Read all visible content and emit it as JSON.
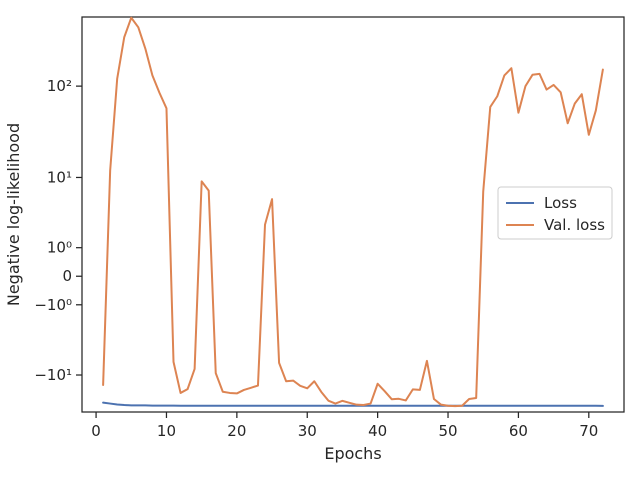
{
  "chart_data": {
    "type": "line",
    "xlabel": "Epochs",
    "ylabel": "Negative log-likelihood",
    "yscale": "symlog",
    "xlim": [
      -2,
      75
    ],
    "ylim": [
      -26,
      540
    ],
    "xticks": [
      0,
      10,
      20,
      30,
      40,
      50,
      60,
      70
    ],
    "yticks": [
      {
        "value": -10,
        "label": "−10¹"
      },
      {
        "value": -1,
        "label": "−10⁰"
      },
      {
        "value": 0,
        "label": "0"
      },
      {
        "value": 1,
        "label": "10⁰"
      },
      {
        "value": 10,
        "label": "10¹"
      },
      {
        "value": 100,
        "label": "10²"
      }
    ],
    "grid": false,
    "legend": {
      "position": "center-right"
    },
    "x": [
      1,
      2,
      3,
      4,
      5,
      6,
      7,
      8,
      9,
      10,
      11,
      12,
      13,
      14,
      15,
      16,
      17,
      18,
      19,
      20,
      21,
      22,
      23,
      24,
      25,
      26,
      27,
      28,
      29,
      30,
      31,
      32,
      33,
      34,
      35,
      36,
      37,
      38,
      39,
      40,
      41,
      42,
      43,
      44,
      45,
      46,
      47,
      48,
      49,
      50,
      51,
      52,
      53,
      54,
      55,
      56,
      57,
      58,
      59,
      60,
      61,
      62,
      63,
      64,
      65,
      66,
      67,
      68,
      69,
      70,
      71,
      72
    ],
    "series": [
      {
        "name": "Loss",
        "color": "#4c72b0",
        "values": [
          -20.5,
          -21,
          -21.5,
          -21.8,
          -22,
          -22,
          -22,
          -22.1,
          -22.1,
          -22.1,
          -22.1,
          -22.2,
          -22.2,
          -22.2,
          -22.2,
          -22.2,
          -22.2,
          -22.2,
          -22.2,
          -22.2,
          -22.2,
          -22.2,
          -22.2,
          -22.2,
          -22.2,
          -22.2,
          -22.2,
          -22.2,
          -22.2,
          -22.2,
          -22.2,
          -22.2,
          -22.2,
          -22.2,
          -22.2,
          -22.2,
          -22.2,
          -22.2,
          -22.2,
          -22.2,
          -22.2,
          -22.2,
          -22.2,
          -22.2,
          -22.2,
          -22.2,
          -22.2,
          -22.2,
          -22.2,
          -22.2,
          -22.2,
          -22.2,
          -22.2,
          -22.2,
          -22.2,
          -22.2,
          -22.2,
          -22.2,
          -22.2,
          -22.2,
          -22.2,
          -22.2,
          -22.2,
          -22.2,
          -22.2,
          -22.2,
          -22.2,
          -22.2,
          -22.2,
          -22.2,
          -22.2,
          -22.3
        ]
      },
      {
        "name": "Val. loss",
        "color": "#dd8452",
        "values": [
          -13,
          12,
          120,
          330,
          530,
          420,
          250,
          130,
          85,
          58,
          -7,
          -16,
          -14.5,
          -8.5,
          9,
          7,
          -9.5,
          -15.5,
          -16,
          -16.2,
          -14.8,
          -14,
          -13.2,
          2.5,
          5.5,
          -7.2,
          -11.8,
          -11.6,
          -13.3,
          -14.2,
          -11.8,
          -15.6,
          -19.5,
          -21,
          -19.6,
          -20.6,
          -21.6,
          -21.8,
          -21,
          -12.6,
          -15.3,
          -18.8,
          -18.6,
          -19.4,
          -14.6,
          -14.8,
          -6.8,
          -18.7,
          -21.6,
          -22.2,
          -22.4,
          -22.2,
          -18.7,
          -18.2,
          6.8,
          60,
          78,
          130,
          155,
          52,
          100,
          132,
          135,
          92,
          103,
          86,
          40,
          65,
          82,
          30,
          55,
          150
        ]
      }
    ]
  }
}
